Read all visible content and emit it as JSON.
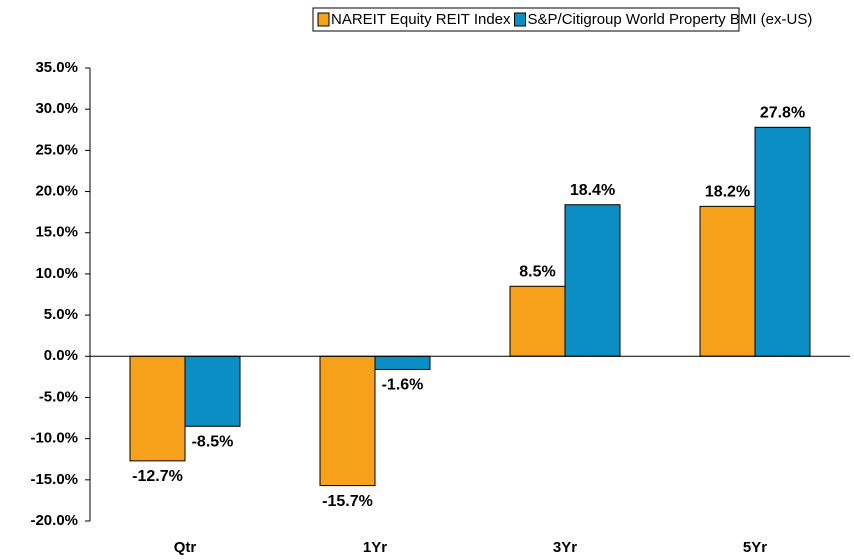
{
  "chart_data": {
    "type": "bar",
    "categories": [
      "Qtr",
      "1Yr",
      "3Yr",
      "5Yr"
    ],
    "series": [
      {
        "name": "NAREIT Equity REIT Index",
        "color": "#f7a11a",
        "values": [
          -12.7,
          -15.7,
          8.5,
          18.2
        ],
        "value_labels": [
          "-12.7%",
          "-15.7%",
          "8.5%",
          "18.2%"
        ]
      },
      {
        "name": "S&P/Citigroup World Property BMI (ex-US)",
        "color": "#0b8ec4",
        "values": [
          -8.5,
          -1.6,
          18.4,
          27.8
        ],
        "value_labels": [
          "-8.5%",
          "-1.6%",
          "18.4%",
          "27.8%"
        ]
      }
    ],
    "ylim": [
      -20,
      35
    ],
    "yticks": [
      {
        "value": -20,
        "label": "-20.0%"
      },
      {
        "value": -15,
        "label": "-15.0%"
      },
      {
        "value": -10,
        "label": "-10.0%"
      },
      {
        "value": -5,
        "label": "-5.0%"
      },
      {
        "value": 0,
        "label": "0.0%"
      },
      {
        "value": 5,
        "label": "5.0%"
      },
      {
        "value": 10,
        "label": "10.0%"
      },
      {
        "value": 15,
        "label": "15.0%"
      },
      {
        "value": 20,
        "label": "20.0%"
      },
      {
        "value": 25,
        "label": "25.0%"
      },
      {
        "value": 30,
        "label": "30.0%"
      },
      {
        "value": 35,
        "label": "35.0%"
      }
    ],
    "grid": false,
    "legend": "top"
  }
}
